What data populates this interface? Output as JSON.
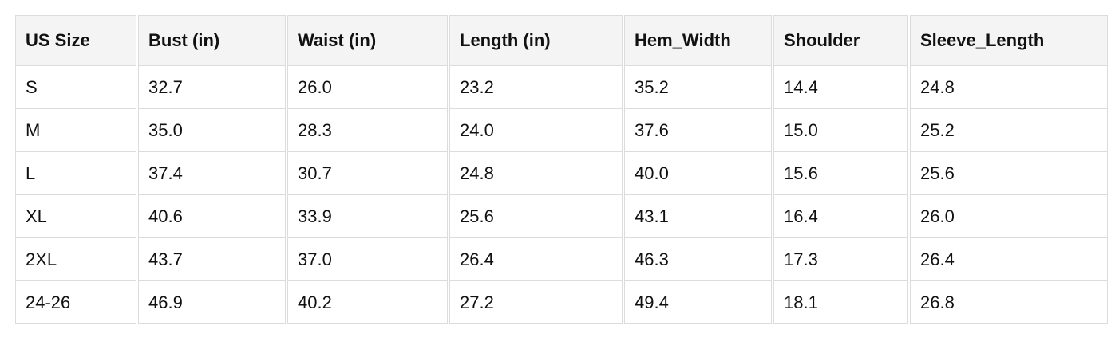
{
  "table": {
    "header": [
      "US Size",
      "Bust (in)",
      "Waist (in)",
      "Length (in)",
      "Hem_Width",
      "Shoulder",
      "Sleeve_Length"
    ],
    "rows": [
      [
        "S",
        "32.7",
        "26.0",
        "23.2",
        "35.2",
        "14.4",
        "24.8"
      ],
      [
        "M",
        "35.0",
        "28.3",
        "24.0",
        "37.6",
        "15.0",
        "25.2"
      ],
      [
        "L",
        "37.4",
        "30.7",
        "24.8",
        "40.0",
        "15.6",
        "25.6"
      ],
      [
        "XL",
        "40.6",
        "33.9",
        "25.6",
        "43.1",
        "16.4",
        "26.0"
      ],
      [
        "2XL",
        "43.7",
        "37.0",
        "26.4",
        "46.3",
        "17.3",
        "26.4"
      ],
      [
        "24-26",
        "46.9",
        "40.2",
        "27.2",
        "49.4",
        "18.1",
        "26.8"
      ]
    ]
  }
}
